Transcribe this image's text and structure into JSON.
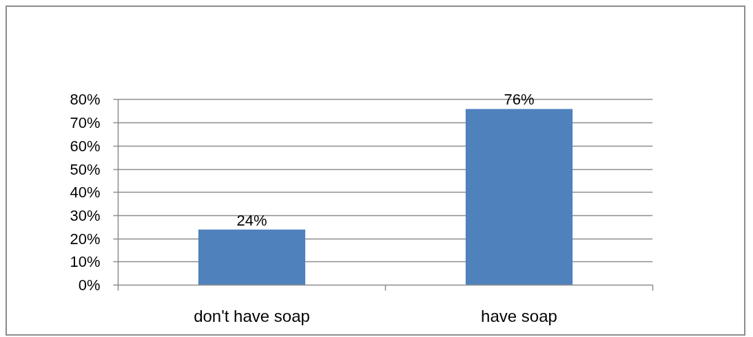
{
  "chart_data": {
    "type": "bar",
    "categories": [
      "don't have soap",
      "have soap"
    ],
    "values": [
      24,
      76
    ],
    "value_labels": [
      "24%",
      "76%"
    ],
    "color": "#4f81bd",
    "ylim": [
      0,
      80
    ],
    "yticks": [
      {
        "value": 0,
        "label": "0%"
      },
      {
        "value": 10,
        "label": "10%"
      },
      {
        "value": 20,
        "label": "20%"
      },
      {
        "value": 30,
        "label": "30%"
      },
      {
        "value": 40,
        "label": "40%"
      },
      {
        "value": 50,
        "label": "50%"
      },
      {
        "value": 60,
        "label": "60%"
      },
      {
        "value": 70,
        "label": "70%"
      },
      {
        "value": 80,
        "label": "80%"
      }
    ],
    "grid": "y"
  }
}
